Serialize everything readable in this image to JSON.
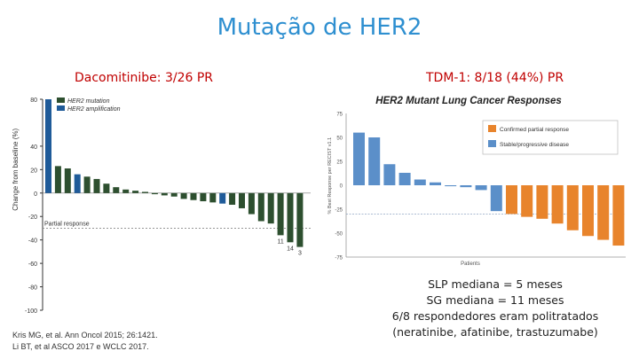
{
  "header": {
    "title": "Mutação de HER2"
  },
  "left_label": "Dacomitinibe: 3/26 PR",
  "right_label": "TDM-1: 8/18 (44%) PR",
  "references": [
    "Kris MG, et al. Ann Oncol 2015; 26:1421.",
    "Li BT, et al ASCO 2017 e WCLC 2017."
  ],
  "notes": [
    "SLP mediana = 5 meses",
    "SG mediana = 11 meses",
    "6/8 respondedores eram politratados",
    "(neratinibe, afatinibe, trastuzumabe)"
  ],
  "colors": {
    "title": "#2e8fd0",
    "labels": "#c00000",
    "mutation": "#2d4f2f",
    "amplification": "#1f5b99",
    "confirmed": "#e8842c",
    "stable": "#5b8fc9"
  },
  "chart_data": [
    {
      "type": "bar",
      "title": "",
      "xlabel": "",
      "ylabel": "Change from baseline (%)",
      "ylim": [
        -100,
        80
      ],
      "yticks": [
        80,
        40,
        20,
        0,
        -20,
        -40,
        -60,
        -80,
        -100
      ],
      "reference_line": {
        "value": -30,
        "label": "Partial response"
      },
      "legend": {
        "placement": "top-left",
        "entries": [
          {
            "name": "HER2 mutation",
            "color": "#2d4f2f"
          },
          {
            "name": "HER2 amplification",
            "color": "#1f5b99"
          }
        ]
      },
      "bar_labels": [
        {
          "index": 24,
          "text": "11"
        },
        {
          "index": 25,
          "text": "14"
        },
        {
          "index": 26,
          "text": "3"
        }
      ],
      "values": [
        80,
        23,
        21,
        16,
        14,
        12,
        8,
        5,
        3,
        2,
        1,
        -1,
        -2,
        -3,
        -5,
        -6,
        -7,
        -8,
        -9,
        -10,
        -13,
        -18,
        -24,
        -26,
        -36,
        -42,
        -46
      ],
      "groups": [
        "amplification",
        "mutation",
        "mutation",
        "amplification",
        "mutation",
        "mutation",
        "mutation",
        "mutation",
        "mutation",
        "mutation",
        "mutation",
        "mutation",
        "mutation",
        "mutation",
        "mutation",
        "mutation",
        "mutation",
        "mutation",
        "amplification",
        "mutation",
        "mutation",
        "mutation",
        "mutation",
        "mutation",
        "mutation",
        "mutation",
        "mutation"
      ]
    },
    {
      "type": "bar",
      "title": "HER2 Mutant Lung Cancer Responses",
      "xlabel": "Patients",
      "ylabel": "% Best Response per RECIST v1.1",
      "ylim": [
        -75,
        75
      ],
      "yticks": [
        75,
        50,
        25,
        0,
        -25,
        -50,
        -75
      ],
      "reference_line": {
        "value": -30
      },
      "legend": {
        "placement": "top-right",
        "entries": [
          {
            "name": "Confirmed partial response",
            "color": "#e8842c"
          },
          {
            "name": "Stable/progressive disease",
            "color": "#5b8fc9"
          }
        ]
      },
      "values": [
        55,
        50,
        22,
        13,
        6,
        3,
        -1,
        -2,
        -5,
        -27,
        -30,
        -33,
        -35,
        -40,
        -47,
        -53,
        -57,
        -63
      ],
      "groups": [
        "stable",
        "stable",
        "stable",
        "stable",
        "stable",
        "stable",
        "stable",
        "stable",
        "stable",
        "stable",
        "confirmed",
        "confirmed",
        "confirmed",
        "confirmed",
        "confirmed",
        "confirmed",
        "confirmed",
        "confirmed"
      ]
    }
  ]
}
